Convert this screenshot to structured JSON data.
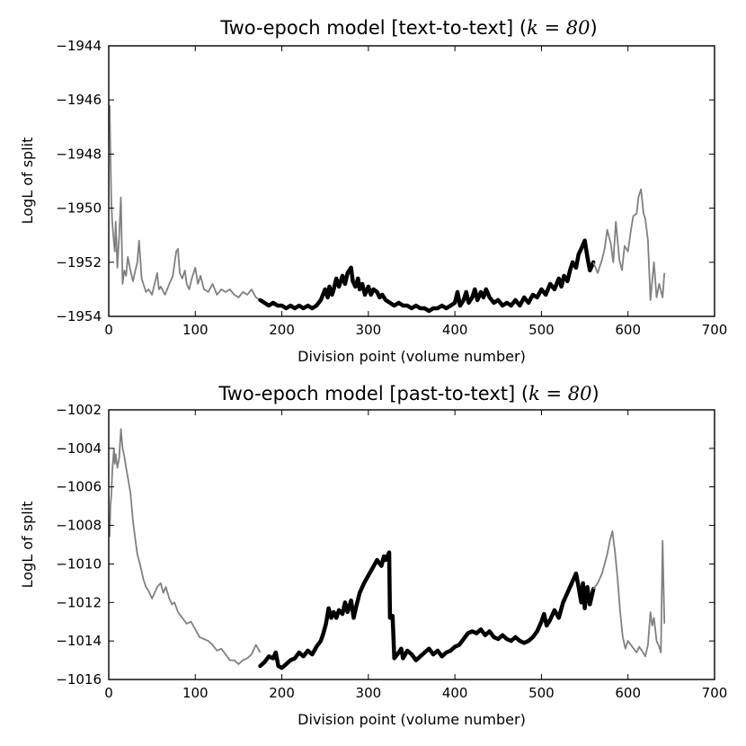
{
  "chart_data": [
    {
      "type": "line",
      "title": "Two-epoch model [text-to-text] (",
      "title_math": "k = 80",
      "title_end": ")",
      "xlabel": "Division point (volume number)",
      "ylabel": "LogL of split",
      "xlim": [
        0,
        700
      ],
      "ylim": [
        -1954,
        -1944
      ],
      "xticks": [
        0,
        100,
        200,
        300,
        400,
        500,
        600,
        700
      ],
      "yticks": [
        -1954,
        -1952,
        -1950,
        -1948,
        -1946,
        -1944
      ],
      "xtick_labels": [
        "0",
        "100",
        "200",
        "300",
        "400",
        "500",
        "600",
        "700"
      ],
      "ytick_labels": [
        "−1954",
        "−1952",
        "−1950",
        "−1948",
        "−1946",
        "−1944"
      ],
      "grid": false,
      "series": [
        {
          "style": "thin",
          "color": "#808080",
          "x": [
            1,
            2,
            3,
            4,
            5,
            6,
            7,
            8,
            10,
            12,
            14,
            16,
            18,
            20,
            22,
            25,
            28,
            30,
            33,
            35,
            38,
            40,
            43,
            46,
            50,
            53,
            56,
            58,
            60,
            65,
            70,
            74,
            78,
            80,
            82,
            85,
            88,
            90,
            93,
            96,
            100,
            103,
            106,
            110,
            115,
            120,
            125,
            130,
            135,
            140,
            145,
            150,
            155,
            160,
            165,
            170,
            175
          ],
          "y": [
            -1946.2,
            -1948.0,
            -1949.8,
            -1950.5,
            -1950.9,
            -1951.3,
            -1951.6,
            -1950.5,
            -1952.2,
            -1951.0,
            -1949.6,
            -1952.8,
            -1952.3,
            -1952.5,
            -1951.8,
            -1952.3,
            -1952.7,
            -1952.4,
            -1952.0,
            -1951.2,
            -1952.6,
            -1952.8,
            -1953.1,
            -1953.0,
            -1953.2,
            -1952.8,
            -1952.4,
            -1953.0,
            -1952.9,
            -1953.2,
            -1952.8,
            -1952.5,
            -1951.6,
            -1951.5,
            -1952.4,
            -1952.6,
            -1952.3,
            -1952.8,
            -1953.0,
            -1952.6,
            -1952.2,
            -1952.8,
            -1952.5,
            -1953.0,
            -1953.1,
            -1952.8,
            -1953.2,
            -1953.0,
            -1953.1,
            -1953.0,
            -1953.2,
            -1953.3,
            -1953.1,
            -1953.2,
            -1953.0,
            -1953.3,
            -1953.4
          ]
        },
        {
          "style": "thick",
          "color": "#000000",
          "x": [
            175,
            180,
            185,
            190,
            195,
            200,
            205,
            210,
            215,
            220,
            225,
            230,
            235,
            240,
            245,
            250,
            253,
            255,
            258,
            260,
            263,
            266,
            270,
            273,
            276,
            278,
            280,
            282,
            285,
            288,
            290,
            293,
            296,
            300,
            303,
            306,
            310,
            313,
            316,
            320,
            325,
            330,
            335,
            340,
            345,
            350,
            355,
            360,
            365,
            370,
            375,
            380,
            385,
            390,
            395,
            400,
            403,
            406,
            410,
            413,
            416,
            420,
            423,
            426,
            430,
            433,
            436,
            440,
            445,
            450,
            455,
            460,
            465,
            470,
            475,
            480,
            485,
            490,
            495,
            500,
            505,
            510,
            515,
            520,
            523,
            526,
            530,
            533,
            536,
            540,
            543,
            546,
            550,
            553,
            556,
            560
          ],
          "y": [
            -1953.4,
            -1953.5,
            -1953.6,
            -1953.5,
            -1953.6,
            -1953.6,
            -1953.7,
            -1953.6,
            -1953.7,
            -1953.6,
            -1953.7,
            -1953.6,
            -1953.7,
            -1953.6,
            -1953.4,
            -1953.0,
            -1953.3,
            -1952.9,
            -1953.2,
            -1953.0,
            -1952.6,
            -1952.9,
            -1952.5,
            -1952.8,
            -1952.4,
            -1952.3,
            -1952.2,
            -1952.7,
            -1952.9,
            -1952.6,
            -1953.0,
            -1952.8,
            -1953.2,
            -1952.9,
            -1953.2,
            -1953.0,
            -1953.1,
            -1953.3,
            -1953.2,
            -1953.4,
            -1953.5,
            -1953.6,
            -1953.5,
            -1953.6,
            -1953.6,
            -1953.7,
            -1953.6,
            -1953.7,
            -1953.7,
            -1953.8,
            -1953.7,
            -1953.7,
            -1953.6,
            -1953.7,
            -1953.6,
            -1953.5,
            -1953.1,
            -1953.6,
            -1953.4,
            -1953.1,
            -1953.5,
            -1953.3,
            -1953.0,
            -1953.4,
            -1953.1,
            -1953.3,
            -1953.0,
            -1953.3,
            -1953.5,
            -1953.4,
            -1953.6,
            -1953.5,
            -1953.6,
            -1953.4,
            -1953.6,
            -1953.3,
            -1953.5,
            -1953.2,
            -1953.3,
            -1953.0,
            -1953.2,
            -1952.8,
            -1953.0,
            -1952.6,
            -1952.9,
            -1952.5,
            -1952.7,
            -1952.3,
            -1952.0,
            -1952.2,
            -1951.7,
            -1951.5,
            -1951.2,
            -1951.8,
            -1952.3,
            -1952.0
          ]
        },
        {
          "style": "thin",
          "color": "#808080",
          "x": [
            560,
            565,
            570,
            573,
            576,
            580,
            583,
            586,
            590,
            593,
            596,
            600,
            603,
            606,
            610,
            612,
            615,
            618,
            620,
            623,
            626,
            630,
            633,
            636,
            640,
            642
          ],
          "y": [
            -1952.0,
            -1952.4,
            -1951.9,
            -1951.5,
            -1950.8,
            -1951.3,
            -1952.0,
            -1950.5,
            -1951.9,
            -1952.3,
            -1951.4,
            -1951.6,
            -1950.9,
            -1950.3,
            -1950.2,
            -1949.6,
            -1949.3,
            -1950.2,
            -1950.4,
            -1951.2,
            -1953.4,
            -1952.0,
            -1953.3,
            -1952.8,
            -1953.3,
            -1952.4
          ]
        }
      ]
    },
    {
      "type": "line",
      "title": "Two-epoch model [past-to-text] (",
      "title_math": "k = 80",
      "title_end": ")",
      "xlabel": "Division point (volume number)",
      "ylabel": "LogL of split",
      "xlim": [
        0,
        700
      ],
      "ylim": [
        -1016,
        -1002
      ],
      "xticks": [
        0,
        100,
        200,
        300,
        400,
        500,
        600,
        700
      ],
      "yticks": [
        -1016,
        -1014,
        -1012,
        -1010,
        -1008,
        -1006,
        -1004,
        -1002
      ],
      "xtick_labels": [
        "0",
        "100",
        "200",
        "300",
        "400",
        "500",
        "600",
        "700"
      ],
      "ytick_labels": [
        "−1016",
        "−1014",
        "−1012",
        "−1010",
        "−1008",
        "−1006",
        "−1004",
        "−1002"
      ],
      "grid": false,
      "series": [
        {
          "style": "thin",
          "color": "#808080",
          "x": [
            1,
            2,
            3,
            4,
            5,
            6,
            7,
            8,
            10,
            12,
            14,
            16,
            18,
            20,
            22,
            25,
            28,
            30,
            33,
            36,
            40,
            43,
            46,
            50,
            53,
            56,
            60,
            63,
            66,
            70,
            73,
            76,
            80,
            85,
            90,
            95,
            100,
            105,
            110,
            115,
            120,
            125,
            130,
            135,
            140,
            145,
            150,
            155,
            160,
            165,
            170,
            175
          ],
          "y": [
            -1008.6,
            -1007.0,
            -1006.4,
            -1005.2,
            -1004.6,
            -1004.0,
            -1004.8,
            -1004.3,
            -1005.0,
            -1004.5,
            -1003.0,
            -1004.0,
            -1004.4,
            -1005.0,
            -1005.5,
            -1006.3,
            -1007.8,
            -1008.5,
            -1009.5,
            -1010.0,
            -1010.8,
            -1011.2,
            -1011.4,
            -1011.8,
            -1011.5,
            -1011.2,
            -1011.0,
            -1011.5,
            -1011.2,
            -1011.8,
            -1012.1,
            -1012.0,
            -1012.5,
            -1012.8,
            -1013.1,
            -1013.0,
            -1013.4,
            -1013.8,
            -1013.9,
            -1014.0,
            -1014.2,
            -1014.5,
            -1014.4,
            -1014.7,
            -1015.0,
            -1015.0,
            -1015.2,
            -1015.0,
            -1014.9,
            -1014.7,
            -1014.2,
            -1014.6
          ]
        },
        {
          "style": "thick",
          "color": "#000000",
          "x": [
            175,
            180,
            185,
            190,
            193,
            196,
            200,
            205,
            210,
            215,
            220,
            225,
            230,
            235,
            240,
            245,
            248,
            251,
            254,
            257,
            260,
            263,
            266,
            270,
            273,
            276,
            280,
            283,
            286,
            290,
            295,
            300,
            305,
            310,
            315,
            318,
            320,
            323,
            324,
            325,
            328,
            330,
            335,
            338,
            340,
            345,
            350,
            355,
            360,
            365,
            370,
            375,
            380,
            385,
            390,
            395,
            400,
            405,
            410,
            415,
            420,
            425,
            430,
            435,
            440,
            445,
            450,
            455,
            460,
            465,
            470,
            475,
            480,
            485,
            490,
            495,
            500,
            503,
            506,
            510,
            515,
            520,
            525,
            530,
            535,
            540,
            543,
            546,
            548,
            550,
            553,
            556,
            560
          ],
          "y": [
            -1015.3,
            -1015.1,
            -1014.8,
            -1014.9,
            -1014.6,
            -1015.3,
            -1015.4,
            -1015.2,
            -1015.0,
            -1014.9,
            -1014.6,
            -1014.8,
            -1014.5,
            -1014.7,
            -1014.3,
            -1014.0,
            -1013.6,
            -1013.1,
            -1012.3,
            -1012.8,
            -1012.5,
            -1012.8,
            -1012.4,
            -1012.6,
            -1012.0,
            -1012.5,
            -1011.9,
            -1012.8,
            -1012.2,
            -1011.5,
            -1011.0,
            -1010.6,
            -1010.2,
            -1009.8,
            -1010.1,
            -1009.6,
            -1009.8,
            -1009.5,
            -1009.4,
            -1012.8,
            -1012.7,
            -1014.9,
            -1014.6,
            -1014.4,
            -1014.9,
            -1014.5,
            -1014.7,
            -1015.0,
            -1014.8,
            -1014.6,
            -1014.4,
            -1014.7,
            -1014.5,
            -1014.8,
            -1014.6,
            -1014.5,
            -1014.3,
            -1014.2,
            -1013.9,
            -1013.6,
            -1013.5,
            -1013.6,
            -1013.4,
            -1013.7,
            -1013.5,
            -1013.8,
            -1013.9,
            -1013.7,
            -1013.9,
            -1014.0,
            -1013.8,
            -1014.0,
            -1014.1,
            -1014.0,
            -1013.8,
            -1013.5,
            -1013.0,
            -1012.6,
            -1013.2,
            -1012.9,
            -1012.4,
            -1012.8,
            -1012.0,
            -1011.5,
            -1011.0,
            -1010.5,
            -1011.2,
            -1012.0,
            -1011.0,
            -1012.3,
            -1011.2,
            -1012.1,
            -1011.3
          ]
        },
        {
          "style": "thin",
          "color": "#808080",
          "x": [
            560,
            565,
            570,
            573,
            576,
            579,
            582,
            585,
            588,
            591,
            594,
            597,
            600,
            605,
            610,
            613,
            616,
            620,
            623,
            626,
            628,
            630,
            633,
            636,
            638,
            640,
            642
          ],
          "y": [
            -1011.3,
            -1011.0,
            -1010.5,
            -1010.0,
            -1009.5,
            -1008.8,
            -1008.3,
            -1009.4,
            -1010.8,
            -1012.5,
            -1013.8,
            -1014.4,
            -1014.0,
            -1014.3,
            -1014.6,
            -1014.3,
            -1014.5,
            -1014.8,
            -1014.2,
            -1012.5,
            -1013.2,
            -1012.8,
            -1014.0,
            -1014.3,
            -1014.6,
            -1008.8,
            -1013.1
          ]
        }
      ]
    }
  ]
}
